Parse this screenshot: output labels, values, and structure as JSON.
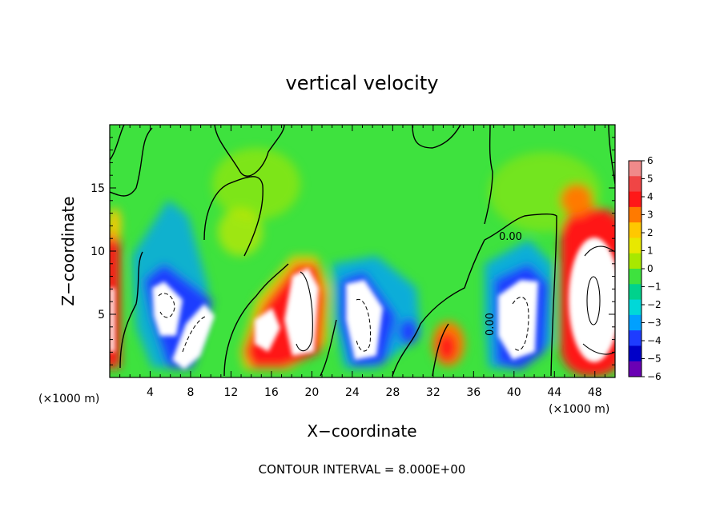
{
  "chart_data": {
    "type": "heatmap",
    "title": "vertical velocity",
    "xlabel": "X−coordinate",
    "ylabel": "Z−coordinate",
    "x_unit_left": "(×1000 m)",
    "x_unit_right": "(×1000 m)",
    "footer": "CONTOUR INTERVAL = 8.000E+00",
    "contour_label_1": "0.00",
    "contour_label_2": "0.00",
    "xlim": [
      0,
      50
    ],
    "ylim": [
      0,
      20
    ],
    "x_ticks": [
      4,
      8,
      12,
      16,
      20,
      24,
      28,
      32,
      36,
      40,
      44,
      48
    ],
    "x_tick_labels": [
      "4",
      "8",
      "12",
      "16",
      "20",
      "24",
      "28",
      "32",
      "36",
      "40",
      "44",
      "48"
    ],
    "y_ticks": [
      5,
      10,
      15
    ],
    "y_tick_labels": [
      "5",
      "10",
      "15"
    ],
    "colorbar": {
      "range": [
        -6,
        6
      ],
      "labels": [
        "6",
        "5",
        "4",
        "3",
        "2",
        "1",
        "0",
        "−1",
        "−2",
        "−3",
        "−4",
        "−5",
        "−6"
      ],
      "colors": [
        "#f08a8a",
        "#f04545",
        "#ff1818",
        "#ff7a00",
        "#ffc800",
        "#e8e800",
        "#a8e800",
        "#3ee23e",
        "#00d28c",
        "#00d8d8",
        "#00a0ff",
        "#1e3cff",
        "#0000c8",
        "#6a00b4"
      ]
    },
    "features": [
      {
        "kind": "downdraft",
        "x": 2.3,
        "z": 0.6,
        "x_peak": 5.8,
        "z_peak": 5.2,
        "strength": -6
      },
      {
        "kind": "downdraft",
        "x": 7.5,
        "z": 2.5,
        "strength": -6
      },
      {
        "kind": "updraft",
        "x": 15.2,
        "z": 3.2,
        "strength": 6
      },
      {
        "kind": "updraft",
        "x": 18.6,
        "z": 5.5,
        "strength": 6
      },
      {
        "kind": "downdraft",
        "x": 25.5,
        "z": 4.6,
        "strength": -6
      },
      {
        "kind": "updraft",
        "x": 32.7,
        "z": 2.4,
        "strength": 4
      },
      {
        "kind": "downdraft",
        "x": 40.5,
        "z": 4.6,
        "strength": -6
      },
      {
        "kind": "updraft",
        "x": 48.2,
        "z": 6.0,
        "strength": 6
      },
      {
        "kind": "updraft",
        "x": 0.3,
        "z": 6.0,
        "strength": 5
      }
    ]
  }
}
